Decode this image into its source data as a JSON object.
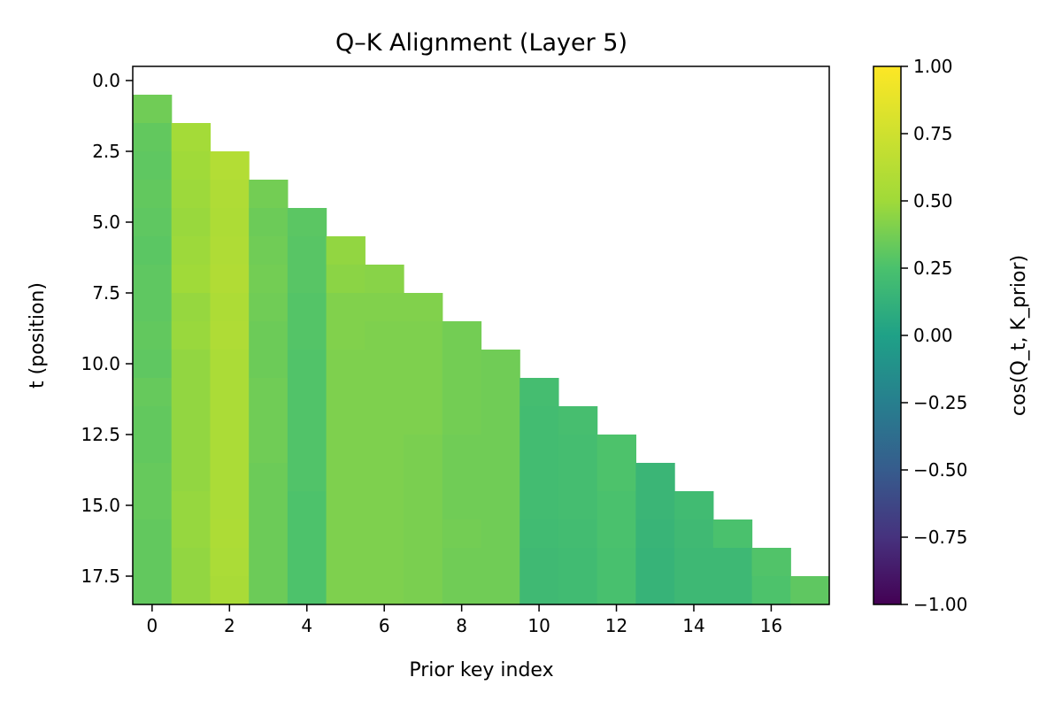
{
  "chart_data": {
    "type": "heatmap",
    "title": "Q–K Alignment (Layer 5)",
    "xlabel": "Prior key index",
    "ylabel": "t (position)",
    "x_ticks": [
      "0",
      "2",
      "4",
      "6",
      "8",
      "10",
      "12",
      "14",
      "16"
    ],
    "y_ticks": [
      "0.0",
      "2.5",
      "5.0",
      "7.5",
      "10.0",
      "12.5",
      "15.0",
      "17.5"
    ],
    "xlim": [
      -0.5,
      17.5
    ],
    "ylim": [
      -0.5,
      18.5
    ],
    "y_inverted": true,
    "colormap": "viridis",
    "vmin": -1.0,
    "vmax": 1.0,
    "colorbar_label": "cos(Q_t, K_prior)",
    "colorbar_ticks": [
      "1.00",
      "0.75",
      "0.50",
      "0.25",
      "0.00",
      "−0.25",
      "−0.50",
      "−0.75",
      "−1.00"
    ],
    "masked_region": "upper triangle (key index ≥ t) not shown",
    "values": [
      [],
      [
        0.36
      ],
      [
        0.32,
        0.52
      ],
      [
        0.31,
        0.5,
        0.6
      ],
      [
        0.32,
        0.49,
        0.58,
        0.37
      ],
      [
        0.31,
        0.48,
        0.57,
        0.35,
        0.3
      ],
      [
        0.3,
        0.49,
        0.58,
        0.36,
        0.29,
        0.46
      ],
      [
        0.31,
        0.5,
        0.59,
        0.37,
        0.29,
        0.44,
        0.43
      ],
      [
        0.31,
        0.47,
        0.57,
        0.36,
        0.28,
        0.41,
        0.41,
        0.41
      ],
      [
        0.32,
        0.48,
        0.58,
        0.35,
        0.28,
        0.41,
        0.4,
        0.4,
        0.37
      ],
      [
        0.31,
        0.46,
        0.56,
        0.35,
        0.27,
        0.4,
        0.4,
        0.4,
        0.37,
        0.36
      ],
      [
        0.33,
        0.46,
        0.56,
        0.36,
        0.27,
        0.4,
        0.4,
        0.4,
        0.37,
        0.36,
        0.22
      ],
      [
        0.32,
        0.46,
        0.56,
        0.36,
        0.27,
        0.4,
        0.4,
        0.4,
        0.37,
        0.36,
        0.21,
        0.23
      ],
      [
        0.32,
        0.46,
        0.56,
        0.36,
        0.27,
        0.4,
        0.4,
        0.39,
        0.36,
        0.36,
        0.21,
        0.22,
        0.26
      ],
      [
        0.33,
        0.46,
        0.56,
        0.35,
        0.27,
        0.4,
        0.4,
        0.39,
        0.36,
        0.36,
        0.21,
        0.22,
        0.26,
        0.16
      ],
      [
        0.33,
        0.47,
        0.56,
        0.35,
        0.26,
        0.4,
        0.4,
        0.39,
        0.36,
        0.36,
        0.21,
        0.22,
        0.25,
        0.16,
        0.2
      ],
      [
        0.32,
        0.47,
        0.57,
        0.35,
        0.26,
        0.4,
        0.4,
        0.39,
        0.37,
        0.36,
        0.2,
        0.21,
        0.25,
        0.15,
        0.19,
        0.25
      ],
      [
        0.32,
        0.46,
        0.56,
        0.35,
        0.26,
        0.4,
        0.4,
        0.39,
        0.36,
        0.36,
        0.19,
        0.2,
        0.24,
        0.14,
        0.18,
        0.18,
        0.27
      ],
      [
        0.32,
        0.46,
        0.55,
        0.35,
        0.26,
        0.4,
        0.4,
        0.39,
        0.36,
        0.36,
        0.19,
        0.2,
        0.24,
        0.14,
        0.18,
        0.18,
        0.26,
        0.31
      ]
    ]
  }
}
